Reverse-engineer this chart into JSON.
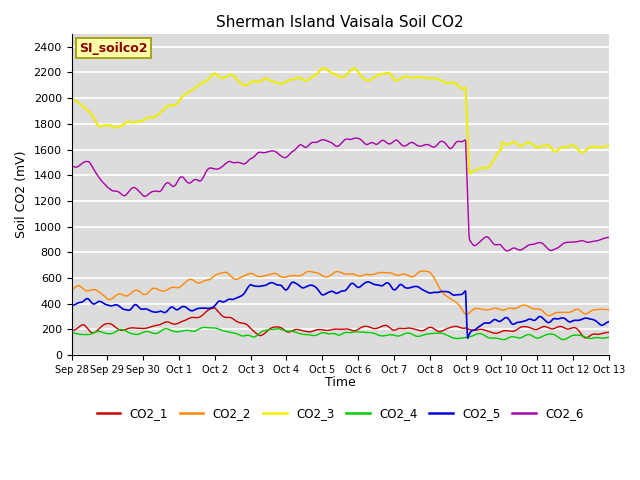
{
  "title": "Sherman Island Vaisala Soil CO2",
  "ylabel": "Soil CO2 (mV)",
  "xlabel": "Time",
  "annotation": "SI_soilco2",
  "ylim": [
    0,
    2500
  ],
  "background_color": "#dcdcdc",
  "legend_labels": [
    "CO2_1",
    "CO2_2",
    "CO2_3",
    "CO2_4",
    "CO2_5",
    "CO2_6"
  ],
  "colors": {
    "CO2_1": "#cc0000",
    "CO2_2": "#ff8800",
    "CO2_3": "#eeee00",
    "CO2_4": "#00cc00",
    "CO2_5": "#0000dd",
    "CO2_6": "#aa00aa"
  },
  "yticks": [
    0,
    200,
    400,
    600,
    800,
    1000,
    1200,
    1400,
    1600,
    1800,
    2000,
    2200,
    2400
  ],
  "xtick_labels": [
    "Sep 28",
    "Sep 29",
    "Sep 30",
    "Oct 1",
    "Oct 2",
    "Oct 3",
    "Oct 4",
    "Oct 5",
    "Oct 6",
    "Oct 7",
    "Oct 8",
    "Oct 9",
    "Oct 10",
    "Oct 11",
    "Oct 12",
    "Oct 13"
  ],
  "num_points": 800,
  "drop_day": 11.0
}
